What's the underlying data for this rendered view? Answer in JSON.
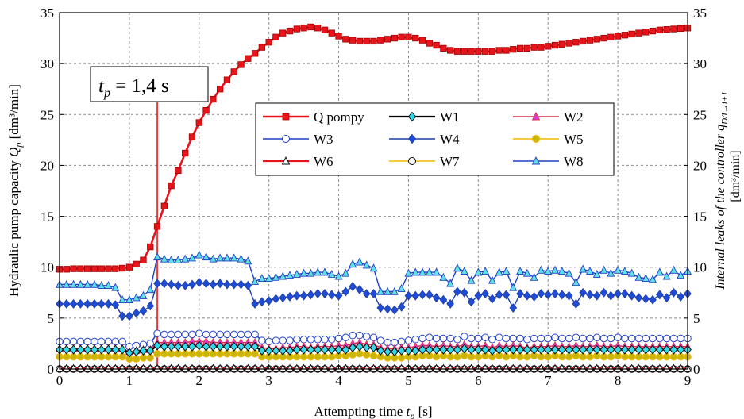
{
  "chart_data": {
    "type": "line",
    "ylabel_left": "Hydraulic pump capacity Q_p [dm³/min]",
    "ylabel_left_pre": "Hydraulic pump capacity ",
    "ylabel_left_q": "Q",
    "ylabel_left_sub": "p",
    "ylabel_left_unit": " [dm³/min]",
    "ylabel_right_1": "Internal leaks of the controller q_D/I→i+1",
    "ylabel_right_1_pre": "Internal leaks of the controller ",
    "ylabel_right_1_q": "q",
    "ylabel_right_1_sub": "D/I→i+1",
    "ylabel_right_2": "[dm³/min]",
    "xlabel": "Attempting time t_p [s]",
    "xlabel_pre": "Attempting time ",
    "xlabel_t": "t",
    "xlabel_sub": "p",
    "xlabel_unit": " [s]",
    "xlim": [
      0,
      9
    ],
    "ylim": [
      0,
      35
    ],
    "xticks": [
      "0",
      "1",
      "2",
      "3",
      "4",
      "5",
      "6",
      "7",
      "8",
      "9"
    ],
    "yticks": [
      "0",
      "5",
      "10",
      "15",
      "20",
      "25",
      "30",
      "35"
    ],
    "grid": true,
    "legend_placement": "center",
    "annotation": {
      "text": "t_p = 1,4 s",
      "t": "t",
      "sub": "p",
      "rest": " = 1,4 s",
      "x": 1.4,
      "color": "#e8141b"
    },
    "x": [
      0.0,
      0.1,
      0.2,
      0.3,
      0.4,
      0.5,
      0.6,
      0.7,
      0.8,
      0.9,
      1.0,
      1.1,
      1.2,
      1.3,
      1.4,
      1.5,
      1.6,
      1.7,
      1.8,
      1.9,
      2.0,
      2.1,
      2.2,
      2.3,
      2.4,
      2.5,
      2.6,
      2.7,
      2.8,
      2.9,
      3.0,
      3.1,
      3.2,
      3.3,
      3.4,
      3.5,
      3.6,
      3.7,
      3.8,
      3.9,
      4.0,
      4.1,
      4.2,
      4.3,
      4.4,
      4.5,
      4.6,
      4.7,
      4.8,
      4.9,
      5.0,
      5.1,
      5.2,
      5.3,
      5.4,
      5.5,
      5.6,
      5.7,
      5.8,
      5.9,
      6.0,
      6.1,
      6.2,
      6.3,
      6.4,
      6.5,
      6.6,
      6.7,
      6.8,
      6.9,
      7.0,
      7.1,
      7.2,
      7.3,
      7.4,
      7.5,
      7.6,
      7.7,
      7.8,
      7.9,
      8.0,
      8.1,
      8.2,
      8.3,
      8.4,
      8.5,
      8.6,
      8.7,
      8.8,
      8.9,
      9.0
    ],
    "series": [
      {
        "name": "Q pompy",
        "color": "#e8141b",
        "marker": "square",
        "marker_fill": "#e8141b",
        "line_width": 2.6,
        "values": [
          9.8,
          9.8,
          9.85,
          9.85,
          9.85,
          9.85,
          9.85,
          9.85,
          9.85,
          9.9,
          10.0,
          10.3,
          10.7,
          12.0,
          14.0,
          16.0,
          18.0,
          19.5,
          21.2,
          22.8,
          24.2,
          25.4,
          26.5,
          27.5,
          28.4,
          29.2,
          29.9,
          30.5,
          31.0,
          31.6,
          32.1,
          32.6,
          33.0,
          33.2,
          33.4,
          33.5,
          33.6,
          33.5,
          33.3,
          33.0,
          32.7,
          32.4,
          32.3,
          32.2,
          32.2,
          32.2,
          32.3,
          32.4,
          32.5,
          32.6,
          32.6,
          32.5,
          32.3,
          32.0,
          31.8,
          31.5,
          31.3,
          31.2,
          31.2,
          31.2,
          31.2,
          31.2,
          31.2,
          31.3,
          31.3,
          31.4,
          31.5,
          31.5,
          31.6,
          31.6,
          31.7,
          31.8,
          31.9,
          32.0,
          32.1,
          32.2,
          32.3,
          32.4,
          32.5,
          32.6,
          32.7,
          32.8,
          32.9,
          33.0,
          33.1,
          33.2,
          33.3,
          33.35,
          33.4,
          33.45,
          33.5
        ]
      },
      {
        "name": "W1",
        "color": "#000000",
        "marker": "diamond",
        "marker_fill": "#33d9e8",
        "line_width": 2.2,
        "values": [
          1.9,
          1.9,
          1.9,
          1.9,
          1.9,
          1.9,
          1.9,
          1.9,
          1.9,
          1.9,
          1.6,
          1.7,
          1.8,
          1.8,
          2.3,
          2.2,
          2.2,
          2.2,
          2.2,
          2.2,
          2.3,
          2.2,
          2.2,
          2.2,
          2.2,
          2.2,
          2.2,
          2.2,
          2.2,
          1.8,
          1.8,
          1.8,
          1.8,
          1.8,
          1.9,
          1.9,
          1.9,
          1.9,
          1.9,
          1.9,
          1.9,
          1.9,
          2.1,
          2.2,
          2.1,
          2.1,
          1.8,
          1.7,
          1.7,
          1.8,
          1.8,
          1.8,
          1.9,
          1.9,
          1.9,
          1.9,
          1.9,
          1.9,
          2.0,
          1.9,
          1.9,
          1.9,
          1.8,
          1.9,
          1.9,
          1.9,
          1.9,
          1.9,
          1.9,
          1.9,
          1.9,
          1.9,
          1.9,
          1.9,
          1.9,
          1.9,
          1.9,
          1.9,
          1.9,
          1.9,
          1.9,
          1.9,
          1.9,
          1.9,
          1.9,
          1.9,
          1.9,
          1.9,
          1.9,
          1.9,
          1.9
        ]
      },
      {
        "name": "W2",
        "color": "#d6304f",
        "marker": "triangle",
        "marker_fill": "#e83ad6",
        "line_width": 1.5,
        "values": [
          2.0,
          2.0,
          2.0,
          2.0,
          2.0,
          2.0,
          2.0,
          2.0,
          2.0,
          2.0,
          1.7,
          1.8,
          1.9,
          1.9,
          2.6,
          2.6,
          2.6,
          2.6,
          2.6,
          2.7,
          2.7,
          2.7,
          2.6,
          2.6,
          2.6,
          2.6,
          2.6,
          2.6,
          2.6,
          2.1,
          2.0,
          2.0,
          2.1,
          2.1,
          2.2,
          2.2,
          2.1,
          2.2,
          2.2,
          2.2,
          2.3,
          2.3,
          2.5,
          2.6,
          2.4,
          2.4,
          2.1,
          2.0,
          2.0,
          2.1,
          2.1,
          2.2,
          2.3,
          2.3,
          2.2,
          2.3,
          2.2,
          2.2,
          2.4,
          2.2,
          2.2,
          2.3,
          2.1,
          2.3,
          2.2,
          2.3,
          2.2,
          2.1,
          2.2,
          2.2,
          2.2,
          2.3,
          2.2,
          2.2,
          2.3,
          2.2,
          2.2,
          2.3,
          2.2,
          2.2,
          2.3,
          2.2,
          2.2,
          2.2,
          2.2,
          2.2,
          2.2,
          2.2,
          2.2,
          2.2,
          2.2
        ]
      },
      {
        "name": "W3",
        "color": "#1f3fc4",
        "marker": "circle",
        "marker_fill": "#ffffff",
        "line_width": 1.6,
        "values": [
          2.7,
          2.7,
          2.7,
          2.7,
          2.7,
          2.7,
          2.7,
          2.7,
          2.7,
          2.7,
          2.2,
          2.3,
          2.4,
          2.5,
          3.5,
          3.4,
          3.4,
          3.4,
          3.4,
          3.4,
          3.5,
          3.4,
          3.4,
          3.4,
          3.4,
          3.4,
          3.4,
          3.4,
          3.4,
          2.8,
          2.7,
          2.8,
          2.8,
          2.8,
          2.9,
          2.9,
          2.9,
          2.9,
          2.9,
          2.9,
          3.0,
          3.1,
          3.3,
          3.3,
          3.2,
          3.1,
          2.8,
          2.6,
          2.6,
          2.7,
          2.8,
          2.9,
          3.0,
          3.1,
          3.0,
          3.0,
          3.0,
          2.9,
          3.2,
          3.0,
          3.0,
          3.1,
          2.9,
          3.1,
          3.0,
          3.0,
          3.0,
          2.9,
          3.0,
          3.0,
          3.0,
          3.1,
          3.0,
          3.0,
          3.1,
          3.0,
          3.0,
          3.1,
          3.0,
          3.0,
          3.1,
          3.0,
          3.0,
          3.0,
          3.0,
          3.0,
          3.0,
          3.0,
          3.0,
          3.0,
          3.0
        ]
      },
      {
        "name": "W4",
        "color": "#1f3fa3",
        "marker": "diamond",
        "marker_fill": "#1f4cd6",
        "line_width": 1.4,
        "values": [
          6.4,
          6.4,
          6.4,
          6.4,
          6.4,
          6.4,
          6.4,
          6.4,
          6.3,
          5.2,
          5.2,
          5.5,
          5.7,
          6.2,
          8.4,
          8.4,
          8.3,
          8.2,
          8.2,
          8.3,
          8.5,
          8.4,
          8.3,
          8.4,
          8.3,
          8.3,
          8.3,
          8.2,
          6.4,
          6.6,
          6.7,
          6.9,
          7.0,
          7.1,
          7.2,
          7.2,
          7.3,
          7.4,
          7.4,
          7.3,
          7.2,
          7.6,
          8.1,
          7.8,
          7.4,
          7.4,
          6.0,
          5.9,
          5.8,
          6.1,
          7.2,
          7.2,
          7.3,
          7.3,
          7.0,
          6.8,
          6.4,
          7.6,
          7.5,
          6.6,
          7.2,
          7.4,
          6.9,
          7.3,
          7.3,
          6.0,
          7.4,
          7.2,
          7.1,
          7.4,
          7.3,
          7.4,
          7.3,
          7.2,
          6.4,
          7.5,
          7.3,
          7.2,
          7.5,
          7.2,
          7.4,
          7.4,
          7.2,
          7.0,
          6.9,
          6.8,
          7.3,
          7.0,
          7.5,
          7.1,
          7.4
        ]
      },
      {
        "name": "W5",
        "color": "#f2b800",
        "marker": "circle",
        "marker_fill": "#c9b60a",
        "line_width": 1.4,
        "values": [
          1.2,
          1.2,
          1.2,
          1.2,
          1.2,
          1.2,
          1.2,
          1.2,
          1.2,
          1.2,
          1.0,
          1.0,
          1.1,
          1.1,
          1.5,
          1.5,
          1.5,
          1.5,
          1.5,
          1.5,
          1.5,
          1.5,
          1.5,
          1.5,
          1.5,
          1.5,
          1.5,
          1.5,
          1.5,
          1.2,
          1.2,
          1.2,
          1.2,
          1.2,
          1.2,
          1.2,
          1.2,
          1.2,
          1.2,
          1.2,
          1.3,
          1.3,
          1.4,
          1.5,
          1.4,
          1.3,
          1.2,
          1.1,
          1.1,
          1.1,
          1.2,
          1.2,
          1.3,
          1.3,
          1.2,
          1.3,
          1.2,
          1.2,
          1.3,
          1.2,
          1.2,
          1.3,
          1.2,
          1.3,
          1.2,
          1.3,
          1.2,
          1.2,
          1.3,
          1.2,
          1.2,
          1.3,
          1.2,
          1.2,
          1.3,
          1.2,
          1.2,
          1.3,
          1.2,
          1.2,
          1.3,
          1.2,
          1.2,
          1.2,
          1.2,
          1.2,
          1.2,
          1.2,
          1.2,
          1.2,
          1.2
        ]
      },
      {
        "name": "W6",
        "color": "#e8141b",
        "marker": "triangle",
        "marker_fill": "#ffffff",
        "marker_stroke": "#000000",
        "line_width": 2.2,
        "values": [
          0.05,
          0.05,
          0.05,
          0.05,
          0.05,
          0.05,
          0.05,
          0.05,
          0.05,
          0.05,
          0.05,
          0.05,
          0.05,
          0.05,
          0.05,
          0.05,
          0.05,
          0.05,
          0.05,
          0.05,
          0.05,
          0.05,
          0.05,
          0.05,
          0.05,
          0.05,
          0.05,
          0.05,
          0.05,
          0.05,
          0.05,
          0.05,
          0.05,
          0.05,
          0.05,
          0.05,
          0.05,
          0.05,
          0.05,
          0.05,
          0.05,
          0.05,
          0.05,
          0.05,
          0.05,
          0.05,
          0.05,
          0.05,
          0.05,
          0.05,
          0.05,
          0.05,
          0.05,
          0.05,
          0.05,
          0.05,
          0.05,
          0.05,
          0.05,
          0.05,
          0.05,
          0.05,
          0.05,
          0.05,
          0.05,
          0.05,
          0.05,
          0.05,
          0.05,
          0.05,
          0.05,
          0.05,
          0.05,
          0.05,
          0.05,
          0.05,
          0.05,
          0.05,
          0.05,
          0.05,
          0.05,
          0.05,
          0.05,
          0.05,
          0.05,
          0.05,
          0.05,
          0.05,
          0.05,
          0.05,
          0.05
        ]
      },
      {
        "name": "W7",
        "color": "#f2b800",
        "marker": "circle",
        "marker_fill": "#ffffff",
        "marker_stroke": "#000000",
        "line_width": 1.4,
        "values": [
          0.0,
          0.0,
          0.0,
          0.0,
          0.0,
          0.0,
          0.0,
          0.0,
          0.0,
          0.0,
          0.0,
          0.0,
          0.0,
          0.0,
          0.0,
          0.0,
          0.0,
          0.0,
          0.0,
          0.0,
          0.0,
          0.0,
          0.0,
          0.0,
          0.0,
          0.0,
          0.0,
          0.0,
          0.0,
          0.0,
          0.0,
          0.0,
          0.0,
          0.0,
          0.0,
          0.0,
          0.0,
          0.0,
          0.0,
          0.0,
          0.0,
          0.0,
          0.0,
          0.0,
          0.0,
          0.0,
          0.0,
          0.0,
          0.0,
          0.0,
          0.0,
          0.0,
          0.0,
          0.0,
          0.0,
          0.0,
          0.0,
          0.0,
          0.0,
          0.0,
          0.0,
          0.0,
          0.0,
          0.0,
          0.0,
          0.0,
          0.0,
          0.0,
          0.0,
          0.0,
          0.0,
          0.0,
          0.0,
          0.0,
          0.0,
          0.0,
          0.0,
          0.0,
          0.0,
          0.0,
          0.0,
          0.0,
          0.0,
          0.0,
          0.0,
          0.0,
          0.0,
          0.0,
          0.0,
          0.0,
          0.0
        ]
      },
      {
        "name": "W8",
        "color": "#1f3fc4",
        "marker": "triangle",
        "marker_fill": "#5ee0e6",
        "marker_stroke": "#1f3fc4",
        "line_width": 1.4,
        "values": [
          8.3,
          8.3,
          8.3,
          8.3,
          8.3,
          8.3,
          8.2,
          8.2,
          8.0,
          6.8,
          6.8,
          7.0,
          7.2,
          7.8,
          11.0,
          10.8,
          10.7,
          10.7,
          10.8,
          10.9,
          11.2,
          11.0,
          10.8,
          10.9,
          10.9,
          10.9,
          10.8,
          10.6,
          8.6,
          8.9,
          8.9,
          9.0,
          9.1,
          9.2,
          9.3,
          9.4,
          9.4,
          9.5,
          9.5,
          9.3,
          9.1,
          9.4,
          10.3,
          10.5,
          10.2,
          9.9,
          7.6,
          7.6,
          7.6,
          7.9,
          9.4,
          9.5,
          9.5,
          9.5,
          9.5,
          9.0,
          8.4,
          9.9,
          9.6,
          8.7,
          9.5,
          9.6,
          8.7,
          9.5,
          9.6,
          8.0,
          9.6,
          9.4,
          9.0,
          9.7,
          9.6,
          9.7,
          9.6,
          9.4,
          8.5,
          9.8,
          9.6,
          9.3,
          9.7,
          9.4,
          9.7,
          9.6,
          9.4,
          9.0,
          8.9,
          8.8,
          9.5,
          9.1,
          9.7,
          9.2,
          9.6
        ]
      }
    ]
  }
}
